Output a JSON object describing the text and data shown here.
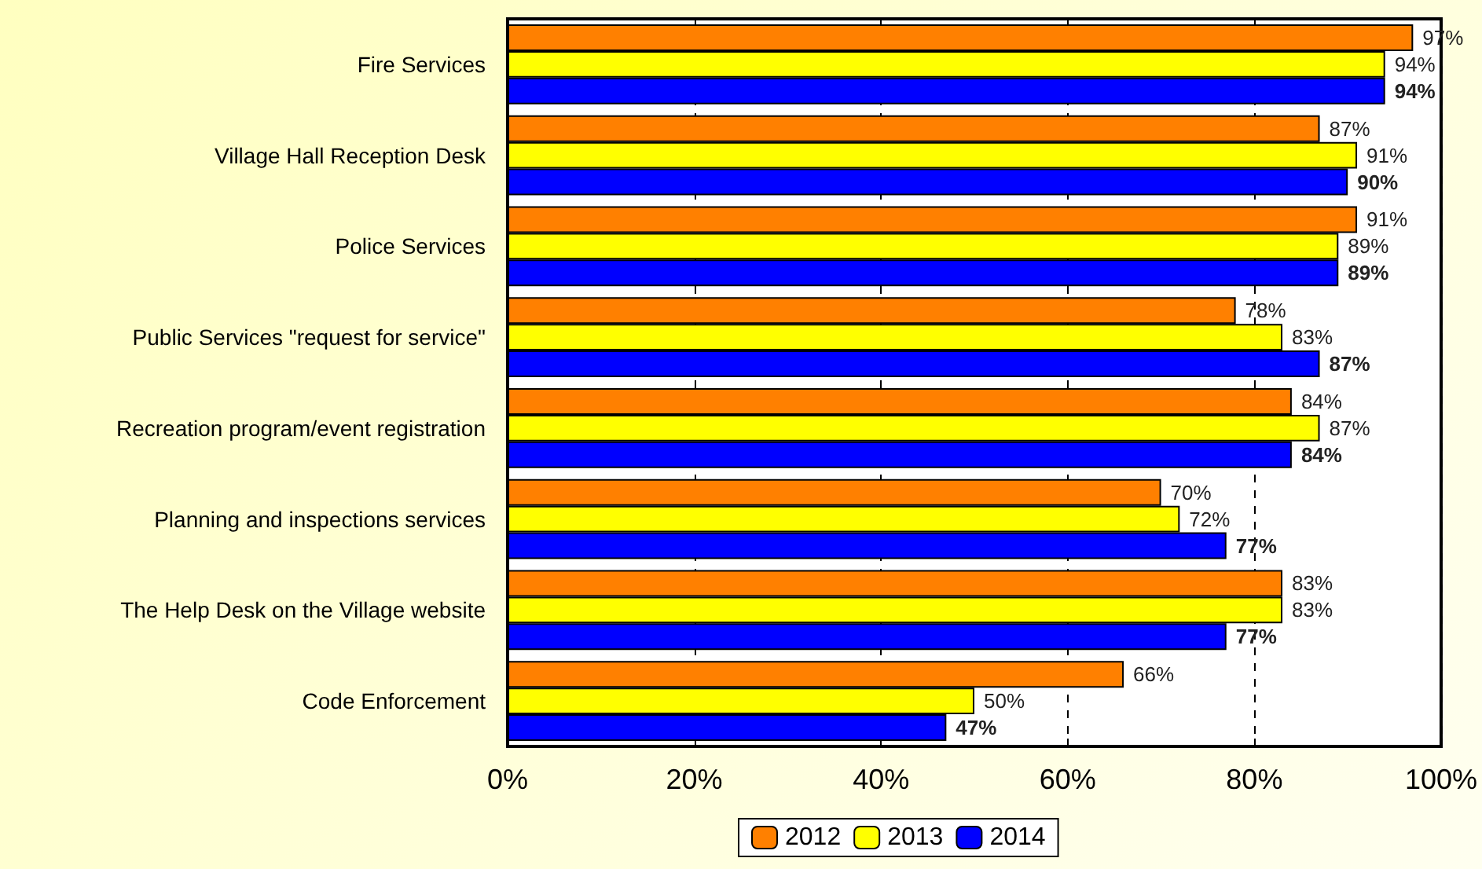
{
  "chart_data": {
    "type": "bar",
    "orientation": "horizontal",
    "categories": [
      "Fire Services",
      "Village Hall Reception Desk",
      "Police Services",
      "Public Services \"request for service\"",
      "Recreation program/event registration",
      "Planning and inspections services",
      "The Help Desk on the Village website",
      "Code Enforcement"
    ],
    "series": [
      {
        "name": "2012",
        "color": "#ff8000",
        "values": [
          97,
          87,
          91,
          78,
          84,
          70,
          83,
          66
        ],
        "value_labels": [
          "97%",
          "87%",
          "91%",
          "78%",
          "84%",
          "70%",
          "83%",
          "66%"
        ]
      },
      {
        "name": "2013",
        "color": "#ffff00",
        "values": [
          94,
          91,
          89,
          83,
          87,
          72,
          83,
          50
        ],
        "value_labels": [
          "94%",
          "91%",
          "89%",
          "83%",
          "87%",
          "72%",
          "83%",
          "50%"
        ]
      },
      {
        "name": "2014",
        "color": "#0000ff",
        "values": [
          94,
          90,
          89,
          87,
          84,
          77,
          77,
          47
        ],
        "value_labels": [
          "94%",
          "90%",
          "89%",
          "87%",
          "84%",
          "77%",
          "77%",
          "47%"
        ]
      }
    ],
    "xlim": [
      0,
      100
    ],
    "xticks": [
      {
        "value": 0,
        "label": "0%"
      },
      {
        "value": 20,
        "label": "20%"
      },
      {
        "value": 40,
        "label": "40%"
      },
      {
        "value": 60,
        "label": "60%"
      },
      {
        "value": 80,
        "label": "80%"
      },
      {
        "value": 100,
        "label": "100%"
      }
    ],
    "grid": "x",
    "legend": "bottom"
  }
}
